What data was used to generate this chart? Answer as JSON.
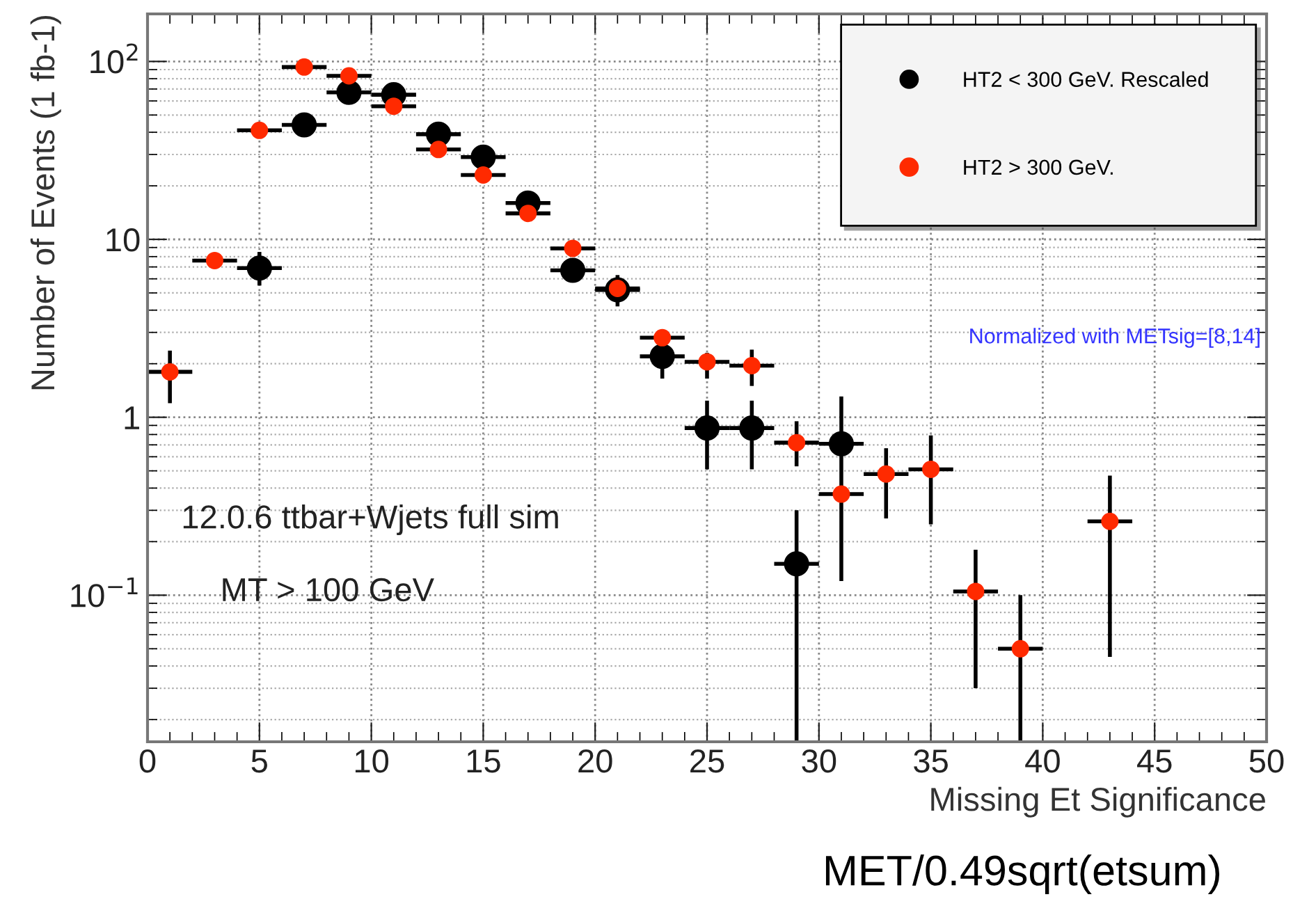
{
  "chart_data": {
    "type": "scatter",
    "xlabel": "Missing Et Significance",
    "ylabel": "Number of Events (1 fb-1)",
    "annotations": [
      "Normalized with METsig=[8,14]",
      "12.0.6 ttbar+Wjets full sim",
      "MT > 100 GeV",
      "MET/0.49sqrt(etsum)"
    ],
    "series": [
      {
        "name": "HT2 < 300 GeV. Rescaled",
        "color": "#000000",
        "x": [
          5,
          7,
          9,
          11,
          13,
          15,
          17,
          19,
          21,
          23,
          25,
          27,
          29,
          31
        ],
        "values": [
          6.9,
          44,
          67,
          65,
          39,
          29,
          16,
          6.7,
          5.2,
          2.2,
          0.87,
          0.87,
          0.15,
          0.71
        ],
        "xerrors": [
          1,
          1,
          1,
          1,
          1,
          1,
          1,
          1,
          1,
          1,
          1,
          1,
          1,
          1
        ],
        "errors": [
          [
            5.5,
            8.5
          ],
          [
            39,
            50
          ],
          null,
          null,
          null,
          null,
          null,
          null,
          [
            4.2,
            6.3
          ],
          [
            1.65,
            2.55
          ],
          [
            0.51,
            1.24
          ],
          [
            0.51,
            1.24
          ],
          [
            0.015,
            0.3
          ],
          [
            0.12,
            1.31
          ]
        ]
      },
      {
        "name": "HT2 > 300 GeV.",
        "color": "#ff2a00",
        "x": [
          1,
          3,
          5,
          7,
          9,
          11,
          13,
          15,
          17,
          19,
          21,
          23,
          25,
          27,
          29,
          31,
          33,
          35,
          37,
          39,
          43
        ],
        "values": [
          1.8,
          7.6,
          41,
          93,
          83,
          56,
          32,
          23,
          14,
          8.9,
          5.3,
          2.8,
          2.05,
          1.95,
          0.72,
          0.37,
          0.48,
          0.51,
          0.105,
          0.05,
          0.26
        ],
        "xerrors": [
          1,
          1,
          1,
          1,
          1,
          1,
          1,
          1,
          1,
          1,
          1,
          1,
          1,
          1,
          1,
          1,
          1,
          1,
          1,
          1,
          1
        ],
        "errors": [
          [
            1.2,
            2.37
          ],
          null,
          null,
          null,
          null,
          null,
          null,
          null,
          null,
          null,
          null,
          null,
          [
            1.65,
            2.3
          ],
          [
            1.5,
            2.4
          ],
          [
            0.53,
            0.95
          ],
          null,
          [
            0.27,
            0.67
          ],
          [
            0.25,
            0.79
          ],
          [
            0.03,
            0.18
          ],
          [
            0.015,
            0.1
          ],
          [
            0.045,
            0.47
          ]
        ]
      }
    ],
    "xlim": [
      0,
      50
    ],
    "xticks": [
      0,
      5,
      10,
      15,
      20,
      25,
      30,
      35,
      40,
      45,
      50
    ],
    "ylim": [
      0.015,
      185
    ],
    "yticks": [
      {
        "value": 0.1,
        "label": "10$^{−1}$"
      },
      1,
      10,
      {
        "value": 100,
        "label": "10$^{2}$"
      }
    ],
    "log": "y",
    "grid": true,
    "legend": "top right",
    "marker": "circle"
  }
}
